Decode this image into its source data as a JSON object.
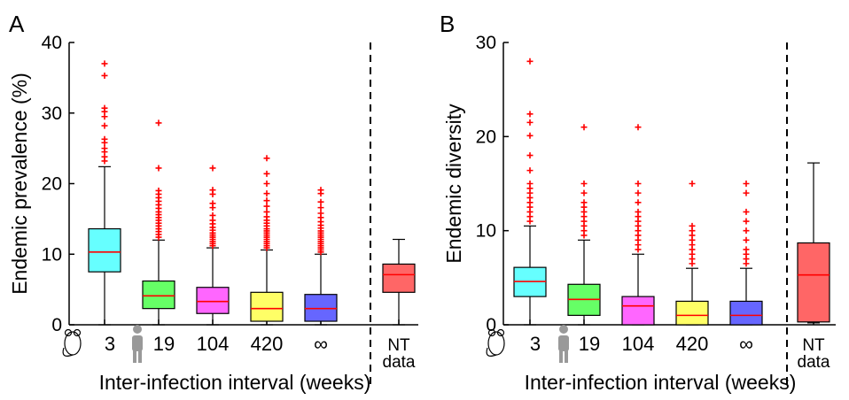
{
  "chart_data": [
    {
      "type": "box",
      "panel_label": "A",
      "ylabel": "Endemic prevalence (%)",
      "xlabel": "Inter-infection interval (weeks)",
      "ylim": [
        0,
        40
      ],
      "yticks": [
        0,
        10,
        20,
        30,
        40
      ],
      "grid": false,
      "categories": [
        "3",
        "19",
        "104",
        "420",
        "∞",
        "NT data"
      ],
      "category_icons": [
        "mouse-icon",
        "person-icon",
        "",
        "",
        "",
        ""
      ],
      "separator_after_index": 4,
      "boxes": [
        {
          "label": "3",
          "color": "#66FFFF",
          "min": 0,
          "q1": 7.5,
          "median": 10.3,
          "q3": 13.6,
          "max": 22.4,
          "outliers": [
            23.2,
            23.8,
            24.5,
            25.0,
            25.8,
            26.3,
            28.2,
            29.5,
            30.2,
            30.7,
            35.3,
            37.0
          ]
        },
        {
          "label": "19",
          "color": "#66FF66",
          "min": 0,
          "q1": 2.3,
          "median": 4.1,
          "q3": 6.2,
          "max": 12.0,
          "outliers": [
            12.4,
            12.8,
            13.2,
            13.6,
            14.0,
            14.4,
            14.8,
            15.2,
            15.6,
            16.0,
            16.5,
            17.0,
            17.5,
            18.0,
            18.5,
            19.0,
            22.2,
            28.6
          ]
        },
        {
          "label": "104",
          "color": "#FF66FF",
          "min": 0,
          "q1": 1.6,
          "median": 3.3,
          "q3": 5.3,
          "max": 10.9,
          "outliers": [
            11.2,
            11.5,
            11.8,
            12.1,
            12.4,
            12.7,
            13.0,
            13.4,
            13.8,
            14.3,
            14.8,
            15.5,
            16.6,
            17.2,
            18.5,
            19.1,
            22.2
          ]
        },
        {
          "label": "420",
          "color": "#FFFF66",
          "min": 0,
          "q1": 0.5,
          "median": 2.3,
          "q3": 4.6,
          "max": 10.6,
          "outliers": [
            10.9,
            11.2,
            11.5,
            11.8,
            12.1,
            12.4,
            12.7,
            13.0,
            13.3,
            13.6,
            14.0,
            14.4,
            14.8,
            15.3,
            16.0,
            16.8,
            17.6,
            18.6,
            20.0,
            21.4,
            23.6
          ]
        },
        {
          "label": "∞",
          "color": "#6666FF",
          "min": 0,
          "q1": 0.5,
          "median": 2.3,
          "q3": 4.3,
          "max": 10.0,
          "outliers": [
            10.3,
            10.6,
            10.9,
            11.2,
            11.5,
            11.8,
            12.1,
            12.4,
            12.7,
            13.0,
            13.3,
            13.7,
            14.1,
            14.6,
            15.2,
            15.8,
            16.6,
            17.4,
            18.6,
            19.1
          ]
        },
        {
          "label": "NT data",
          "color": "#FF6666",
          "min": 0,
          "q1": 4.6,
          "median": 7.1,
          "q3": 8.6,
          "max": 12.1,
          "outliers": []
        }
      ],
      "outlier_color": "#FF0000",
      "median_color": "#FF0000"
    },
    {
      "type": "box",
      "panel_label": "B",
      "ylabel": "Endemic diversity",
      "xlabel": "Inter-infection interval (weeks)",
      "ylim": [
        0,
        30
      ],
      "yticks": [
        0,
        10,
        20,
        30
      ],
      "grid": false,
      "categories": [
        "3",
        "19",
        "104",
        "420",
        "∞",
        "NT data"
      ],
      "category_icons": [
        "mouse-icon",
        "person-icon",
        "",
        "",
        "",
        ""
      ],
      "separator_after_index": 4,
      "boxes": [
        {
          "label": "3",
          "color": "#66FFFF",
          "min": 0,
          "q1": 3.0,
          "median": 4.6,
          "q3": 6.1,
          "max": 10.5,
          "outliers": [
            11.0,
            11.5,
            12.0,
            12.5,
            13.0,
            13.5,
            14.0,
            14.5,
            15.0,
            16.4,
            18.0,
            20.1,
            21.5,
            22.4,
            28.0
          ]
        },
        {
          "label": "19",
          "color": "#66FF66",
          "min": 0,
          "q1": 1.0,
          "median": 2.7,
          "q3": 4.3,
          "max": 9.0,
          "outliers": [
            9.5,
            10.0,
            10.5,
            11.0,
            11.5,
            12.0,
            12.5,
            13.0,
            14.0,
            15.0,
            21.0
          ]
        },
        {
          "label": "104",
          "color": "#FF66FF",
          "min": 0,
          "q1": 0,
          "median": 2.0,
          "q3": 3.0,
          "max": 7.5,
          "outliers": [
            8.0,
            8.5,
            9.0,
            9.5,
            10.0,
            10.5,
            11.0,
            11.5,
            12.0,
            13.0,
            14.0,
            15.0,
            21.0
          ]
        },
        {
          "label": "420",
          "color": "#FFFF66",
          "min": 0,
          "q1": 0,
          "median": 1.0,
          "q3": 2.5,
          "max": 6.0,
          "outliers": [
            6.5,
            7.0,
            7.5,
            8.0,
            8.5,
            9.0,
            9.5,
            10.0,
            10.5,
            15.0
          ]
        },
        {
          "label": "∞",
          "color": "#6666FF",
          "min": 0,
          "q1": 0,
          "median": 1.0,
          "q3": 2.5,
          "max": 6.0,
          "outliers": [
            6.5,
            7.0,
            7.5,
            8.0,
            9.0,
            10.0,
            11.0,
            12.0,
            14.0,
            15.0
          ]
        },
        {
          "label": "NT data",
          "color": "#FF6666",
          "min": 0.2,
          "q1": 0.3,
          "median": 5.3,
          "q3": 8.7,
          "max": 17.2,
          "outliers": []
        }
      ],
      "outlier_color": "#FF0000",
      "median_color": "#FF0000"
    }
  ]
}
